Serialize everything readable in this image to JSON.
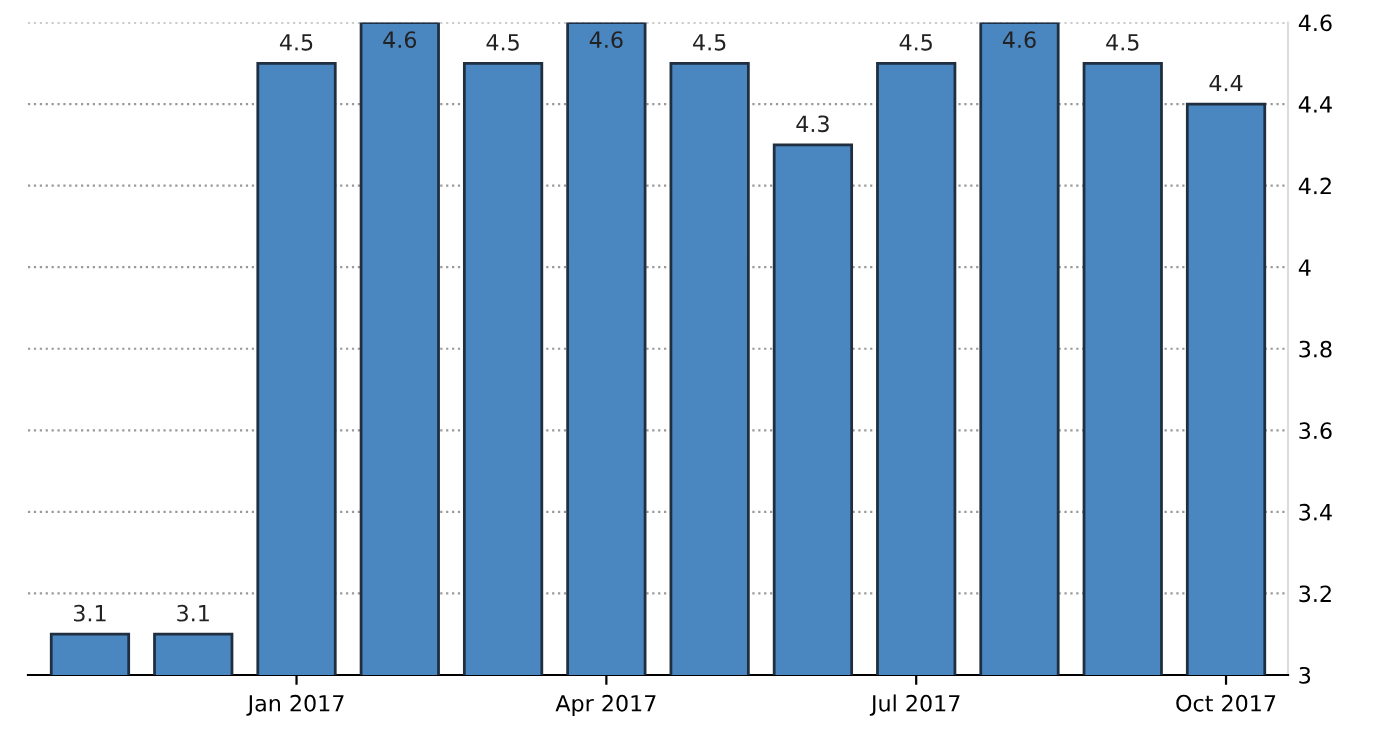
{
  "chart_data": {
    "type": "bar",
    "categories": [
      null,
      null,
      "Jan 2017",
      null,
      null,
      "Apr 2017",
      null,
      null,
      "Jul 2017",
      null,
      null,
      "Oct 2017"
    ],
    "values": [
      3.1,
      3.1,
      4.5,
      4.6,
      4.5,
      4.6,
      4.5,
      4.3,
      4.5,
      4.6,
      4.5,
      4.4
    ],
    "color": "#4a86c0",
    "ylim": [
      3,
      4.6
    ],
    "yticks": [
      3,
      3.2,
      3.4,
      3.6,
      3.8,
      4,
      4.2,
      4.4,
      4.6
    ],
    "grid": "y",
    "data_labels": true
  }
}
